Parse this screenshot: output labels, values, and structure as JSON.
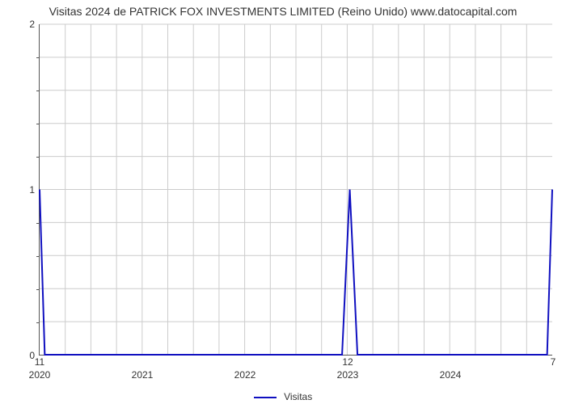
{
  "chart": {
    "type": "line",
    "title": "Visitas 2024 de PATRICK FOX INVESTMENTS LIMITED (Reino Unido) www.datocapital.com",
    "title_fontsize": 14,
    "background_color": "#ffffff",
    "grid_color": "#cccccc",
    "axis_color": "#555555",
    "series": {
      "name": "Visitas",
      "color": "#1010c0",
      "line_width": 2,
      "x": [
        0.0,
        0.01,
        0.59,
        0.605,
        0.62,
        0.99,
        1.0
      ],
      "y": [
        1,
        0,
        0,
        1,
        0,
        0,
        1
      ]
    },
    "y_axis": {
      "min": 0,
      "max": 2,
      "major_ticks": [
        0,
        1,
        2
      ],
      "minor_tick_count_between": 4,
      "label_fontsize": 12
    },
    "x_axis": {
      "min": 0,
      "max": 1,
      "year_ticks": [
        {
          "pos": 0.0,
          "label": "2020"
        },
        {
          "pos": 0.2,
          "label": "2021"
        },
        {
          "pos": 0.4,
          "label": "2022"
        },
        {
          "pos": 0.6,
          "label": "2023"
        },
        {
          "pos": 0.8,
          "label": "2024"
        }
      ],
      "sub_labels": [
        {
          "pos": 0.0,
          "label": "11"
        },
        {
          "pos": 0.6,
          "label": "12"
        },
        {
          "pos": 1.0,
          "label": "7"
        }
      ],
      "grid_lines_per_year": 4,
      "label_fontsize": 12
    },
    "legend": {
      "label": "Visitas",
      "swatch_color": "#1010c0"
    }
  }
}
